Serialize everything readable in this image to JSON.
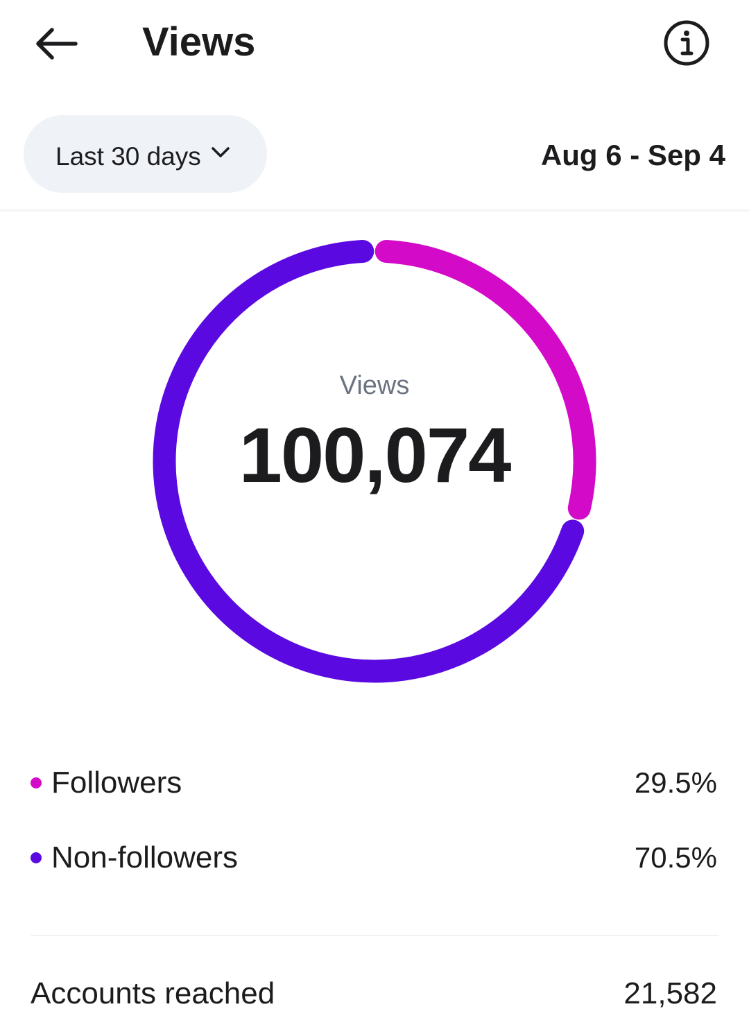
{
  "header": {
    "title": "Views",
    "back_icon": "arrow-left-icon",
    "info_icon": "info-circle-icon"
  },
  "filter": {
    "range_label": "Last 30 days",
    "chevron_icon": "chevron-down-icon",
    "date_range": "Aug 6 - Sep 4"
  },
  "donut": {
    "caption": "Views",
    "total": "100,074"
  },
  "chart_data": {
    "type": "pie",
    "categories": [
      "Followers",
      "Non-followers"
    ],
    "values": [
      29.5,
      70.5
    ],
    "colors": [
      "#d40ac9",
      "#5a0ae0"
    ],
    "title": "Views",
    "total": "100,074"
  },
  "legend": [
    {
      "label": "Followers",
      "value": "29.5%",
      "color": "#d40ac9"
    },
    {
      "label": "Non-followers",
      "value": "70.5%",
      "color": "#5a0ae0"
    }
  ],
  "metrics": [
    {
      "label": "Accounts reached",
      "value": "21,582"
    }
  ]
}
